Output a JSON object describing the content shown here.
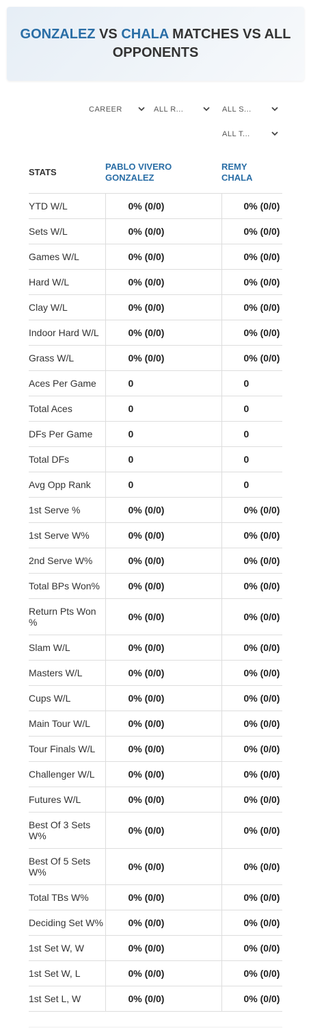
{
  "header": {
    "title": {
      "name1": "GONZALEZ",
      "vs": "VS",
      "name2": "CHALA",
      "rest": "MATCHES VS ALL OPPONENTS"
    }
  },
  "filters": [
    "CAREER",
    "ALL R...",
    "ALL S...",
    "ALL T..."
  ],
  "table": {
    "headers": [
      "STATS",
      "PABLO VIVERO GONZALEZ",
      "REMY CHALA"
    ],
    "rows": [
      [
        "YTD W/L",
        "0% (0/0)",
        "0% (0/0)"
      ],
      [
        "Sets W/L",
        "0% (0/0)",
        "0% (0/0)"
      ],
      [
        "Games W/L",
        "0% (0/0)",
        "0% (0/0)"
      ],
      [
        "Hard W/L",
        "0% (0/0)",
        "0% (0/0)"
      ],
      [
        "Clay W/L",
        "0% (0/0)",
        "0% (0/0)"
      ],
      [
        "Indoor Hard W/L",
        "0% (0/0)",
        "0% (0/0)"
      ],
      [
        "Grass W/L",
        "0% (0/0)",
        "0% (0/0)"
      ],
      [
        "Aces Per Game",
        "0",
        "0"
      ],
      [
        "Total Aces",
        "0",
        "0"
      ],
      [
        "DFs Per Game",
        "0",
        "0"
      ],
      [
        "Total DFs",
        "0",
        "0"
      ],
      [
        "Avg Opp Rank",
        "0",
        "0"
      ],
      [
        "1st Serve %",
        "0% (0/0)",
        "0% (0/0)"
      ],
      [
        "1st Serve W%",
        "0% (0/0)",
        "0% (0/0)"
      ],
      [
        "2nd Serve W%",
        "0% (0/0)",
        "0% (0/0)"
      ],
      [
        "Total BPs Won%",
        "0% (0/0)",
        "0% (0/0)"
      ],
      [
        "Return Pts Won %",
        "0% (0/0)",
        "0% (0/0)"
      ],
      [
        "Slam W/L",
        "0% (0/0)",
        "0% (0/0)"
      ],
      [
        "Masters W/L",
        "0% (0/0)",
        "0% (0/0)"
      ],
      [
        "Cups W/L",
        "0% (0/0)",
        "0% (0/0)"
      ],
      [
        "Main Tour W/L",
        "0% (0/0)",
        "0% (0/0)"
      ],
      [
        "Tour Finals W/L",
        "0% (0/0)",
        "0% (0/0)"
      ],
      [
        "Challenger W/L",
        "0% (0/0)",
        "0% (0/0)"
      ],
      [
        "Futures W/L",
        "0% (0/0)",
        "0% (0/0)"
      ],
      [
        "Best Of 3 Sets W%",
        "0% (0/0)",
        "0% (0/0)"
      ],
      [
        "Best Of 5 Sets W%",
        "0% (0/0)",
        "0% (0/0)"
      ],
      [
        "Total TBs W%",
        "0% (0/0)",
        "0% (0/0)"
      ],
      [
        "Deciding Set W%",
        "0% (0/0)",
        "0% (0/0)"
      ],
      [
        "1st Set W, W",
        "0% (0/0)",
        "0% (0/0)"
      ],
      [
        "1st Set W, L",
        "0% (0/0)",
        "0% (0/0)"
      ],
      [
        "1st Set L, W",
        "0% (0/0)",
        "0% (0/0)"
      ]
    ]
  }
}
